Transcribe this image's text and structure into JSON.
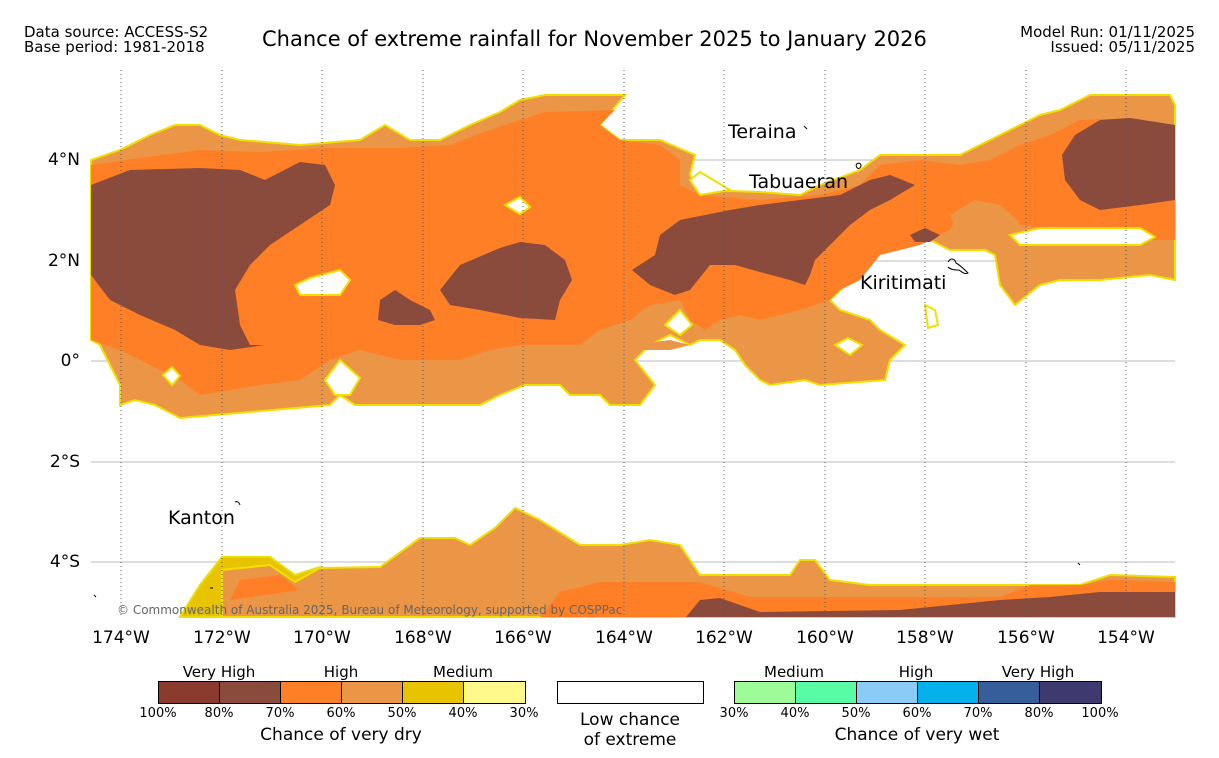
{
  "header": {
    "data_source": "Data source: ACCESS-S2",
    "base_period": "Base period: 1981-2018",
    "title": "Chance of extreme rainfall for November 2025 to January 2026",
    "model_run": "Model Run: 01/11/2025",
    "issued": "Issued: 05/11/2025"
  },
  "map": {
    "lat_labels": [
      "4°N",
      "2°N",
      "0°",
      "2°S",
      "4°S"
    ],
    "lon_labels": [
      "174°W",
      "172°W",
      "170°W",
      "168°W",
      "166°W",
      "164°W",
      "162°W",
      "160°W",
      "158°W",
      "156°W",
      "154°W"
    ],
    "places": [
      "Teraina",
      "Tabuaeran",
      "Kiritimati",
      "Kanton"
    ],
    "copyright": "© Commonwealth of Australia 2025, Bureau of Meteorology, supported by COSPPac"
  },
  "legend": {
    "dry": {
      "categories": [
        "Very High",
        "High",
        "Medium"
      ],
      "ticks": [
        "100%",
        "80%",
        "70%",
        "60%",
        "50%",
        "40%",
        "30%"
      ],
      "colors": [
        "#8b3a2e",
        "#8a4a3c",
        "#fe7f26",
        "#eb9646",
        "#e8c300",
        "#fff98b"
      ],
      "title": "Chance of very dry"
    },
    "low": {
      "label_line1": "Low chance",
      "label_line2": "of extreme"
    },
    "wet": {
      "categories": [
        "Medium",
        "High",
        "Very High"
      ],
      "ticks": [
        "30%",
        "40%",
        "50%",
        "60%",
        "70%",
        "80%",
        "100%"
      ],
      "colors": [
        "#9dfb98",
        "#58fca4",
        "#8acbf8",
        "#04b1ea",
        "#365e9a",
        "#3e3a70"
      ],
      "title": "Chance of very wet"
    }
  }
}
